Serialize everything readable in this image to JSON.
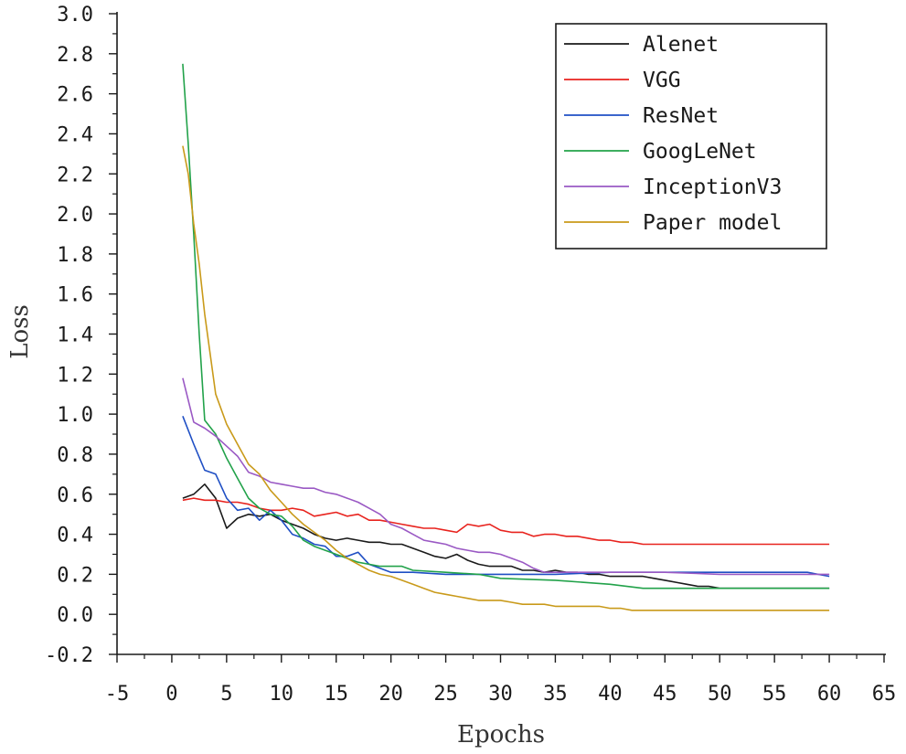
{
  "chart_data": {
    "type": "line",
    "xlabel": "Epochs",
    "ylabel": "Loss",
    "xlim": [
      -5,
      65
    ],
    "ylim": [
      -0.2,
      3.0
    ],
    "xticks": [
      "-5",
      "0",
      "5",
      "10",
      "15",
      "20",
      "25",
      "30",
      "35",
      "40",
      "45",
      "50",
      "55",
      "60",
      "65"
    ],
    "yticks": [
      "-0.2",
      "0.0",
      "0.2",
      "0.4",
      "0.6",
      "0.8",
      "1.0",
      "1.2",
      "1.4",
      "1.6",
      "1.8",
      "2.0",
      "2.2",
      "2.4",
      "2.6",
      "2.8",
      "3.0"
    ],
    "grid": false,
    "legend_position": "top-right",
    "series": [
      {
        "name": "Alenet",
        "color": "#1a1a1a",
        "x": [
          1,
          2,
          3,
          4,
          5,
          6,
          7,
          8,
          9,
          10,
          11,
          12,
          13,
          14,
          15,
          16,
          17,
          18,
          19,
          20,
          21,
          22,
          23,
          24,
          25,
          26,
          27,
          28,
          29,
          30,
          31,
          32,
          33,
          34,
          35,
          36,
          37,
          38,
          39,
          40,
          41,
          42,
          43,
          44,
          45,
          46,
          47,
          48,
          49,
          50,
          52,
          55,
          58,
          60
        ],
        "y": [
          0.58,
          0.6,
          0.65,
          0.58,
          0.43,
          0.48,
          0.5,
          0.49,
          0.5,
          0.47,
          0.45,
          0.43,
          0.4,
          0.38,
          0.37,
          0.38,
          0.37,
          0.36,
          0.36,
          0.35,
          0.35,
          0.33,
          0.31,
          0.29,
          0.28,
          0.3,
          0.27,
          0.25,
          0.24,
          0.24,
          0.24,
          0.22,
          0.22,
          0.21,
          0.22,
          0.21,
          0.21,
          0.2,
          0.2,
          0.19,
          0.19,
          0.19,
          0.19,
          0.18,
          0.17,
          0.16,
          0.15,
          0.14,
          0.14,
          0.13,
          0.13,
          0.13,
          0.13,
          0.13
        ]
      },
      {
        "name": "VGG",
        "color": "#e8231e",
        "x": [
          1,
          2,
          3,
          4,
          5,
          6,
          7,
          8,
          9,
          10,
          11,
          12,
          13,
          14,
          15,
          16,
          17,
          18,
          19,
          20,
          21,
          22,
          23,
          24,
          25,
          26,
          27,
          28,
          29,
          30,
          31,
          32,
          33,
          34,
          35,
          36,
          37,
          38,
          39,
          40,
          41,
          42,
          43,
          44,
          45,
          48,
          50,
          55,
          60
        ],
        "y": [
          0.57,
          0.58,
          0.57,
          0.57,
          0.56,
          0.56,
          0.55,
          0.53,
          0.52,
          0.52,
          0.53,
          0.52,
          0.49,
          0.5,
          0.51,
          0.49,
          0.5,
          0.47,
          0.47,
          0.46,
          0.45,
          0.44,
          0.43,
          0.43,
          0.42,
          0.41,
          0.45,
          0.44,
          0.45,
          0.42,
          0.41,
          0.41,
          0.39,
          0.4,
          0.4,
          0.39,
          0.39,
          0.38,
          0.37,
          0.37,
          0.36,
          0.36,
          0.35,
          0.35,
          0.35,
          0.35,
          0.35,
          0.35,
          0.35
        ]
      },
      {
        "name": "ResNet",
        "color": "#1f4fc4",
        "x": [
          1,
          2,
          3,
          4,
          5,
          6,
          7,
          8,
          9,
          10,
          11,
          12,
          13,
          14,
          15,
          16,
          17,
          18,
          19,
          20,
          21,
          22,
          25,
          30,
          35,
          40,
          45,
          50,
          55,
          58,
          60
        ],
        "y": [
          0.99,
          0.85,
          0.72,
          0.7,
          0.58,
          0.52,
          0.53,
          0.47,
          0.52,
          0.47,
          0.4,
          0.38,
          0.35,
          0.34,
          0.29,
          0.29,
          0.31,
          0.25,
          0.23,
          0.21,
          0.21,
          0.21,
          0.2,
          0.2,
          0.2,
          0.21,
          0.21,
          0.21,
          0.21,
          0.21,
          0.19
        ]
      },
      {
        "name": "GoogLeNet",
        "color": "#22a24a",
        "x": [
          1,
          1.5,
          2,
          2.5,
          3,
          4,
          5,
          6,
          7,
          8,
          9,
          10,
          11,
          12,
          13,
          14,
          15,
          16,
          17,
          18,
          19,
          20,
          21,
          22,
          25,
          28,
          30,
          35,
          40,
          43,
          45,
          50,
          55,
          60
        ],
        "y": [
          2.75,
          2.35,
          1.9,
          1.4,
          0.97,
          0.9,
          0.78,
          0.68,
          0.58,
          0.53,
          0.5,
          0.49,
          0.44,
          0.37,
          0.34,
          0.32,
          0.3,
          0.28,
          0.26,
          0.25,
          0.24,
          0.24,
          0.24,
          0.22,
          0.21,
          0.2,
          0.18,
          0.17,
          0.15,
          0.13,
          0.13,
          0.13,
          0.13,
          0.13
        ]
      },
      {
        "name": "InceptionV3",
        "color": "#9a59c4",
        "x": [
          1,
          2,
          3,
          4,
          5,
          6,
          7,
          8,
          9,
          10,
          11,
          12,
          13,
          14,
          15,
          16,
          17,
          18,
          19,
          20,
          21,
          22,
          23,
          24,
          25,
          26,
          27,
          28,
          29,
          30,
          31,
          32,
          33,
          34,
          35,
          40,
          45,
          50,
          55,
          60
        ],
        "y": [
          1.18,
          0.96,
          0.93,
          0.89,
          0.84,
          0.79,
          0.71,
          0.69,
          0.66,
          0.65,
          0.64,
          0.63,
          0.63,
          0.61,
          0.6,
          0.58,
          0.56,
          0.53,
          0.5,
          0.45,
          0.43,
          0.4,
          0.37,
          0.36,
          0.35,
          0.33,
          0.32,
          0.31,
          0.31,
          0.3,
          0.28,
          0.26,
          0.23,
          0.21,
          0.21,
          0.21,
          0.21,
          0.2,
          0.2,
          0.2
        ]
      },
      {
        "name": "Paper model",
        "color": "#c99a1a",
        "x": [
          1,
          1.5,
          2,
          2.5,
          3,
          4,
          5,
          6,
          7,
          8,
          9,
          10,
          11,
          12,
          13,
          14,
          15,
          16,
          17,
          18,
          19,
          20,
          21,
          22,
          23,
          24,
          25,
          26,
          27,
          28,
          29,
          30,
          31,
          32,
          33,
          34,
          35,
          36,
          37,
          38,
          39,
          40,
          41,
          42,
          43,
          44,
          45,
          46,
          47,
          48,
          49,
          50,
          55,
          56,
          60
        ],
        "y": [
          2.34,
          2.2,
          1.95,
          1.75,
          1.5,
          1.1,
          0.95,
          0.85,
          0.75,
          0.7,
          0.62,
          0.56,
          0.5,
          0.45,
          0.41,
          0.37,
          0.32,
          0.28,
          0.25,
          0.22,
          0.2,
          0.19,
          0.17,
          0.15,
          0.13,
          0.11,
          0.1,
          0.09,
          0.08,
          0.07,
          0.07,
          0.07,
          0.06,
          0.05,
          0.05,
          0.05,
          0.04,
          0.04,
          0.04,
          0.04,
          0.04,
          0.03,
          0.03,
          0.02,
          0.02,
          0.02,
          0.02,
          0.02,
          0.02,
          0.02,
          0.02,
          0.02,
          0.02,
          0.02,
          0.02
        ]
      }
    ]
  }
}
